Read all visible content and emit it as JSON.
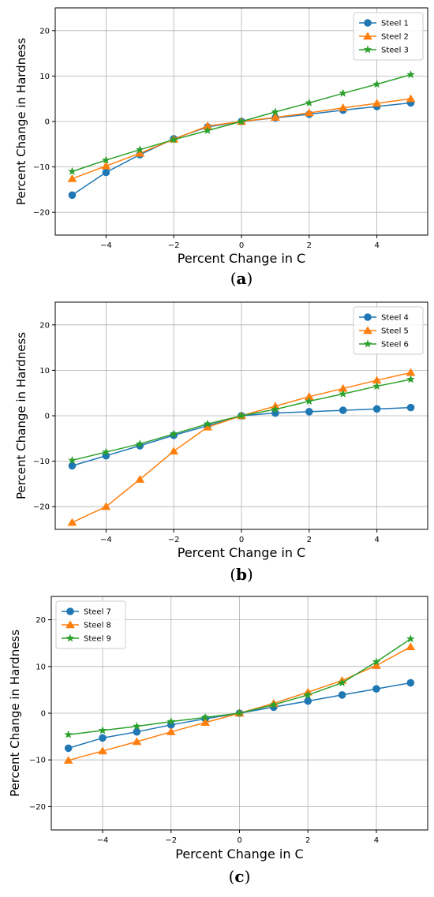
{
  "chart_data": [
    {
      "type": "line",
      "panel_label": "(a)",
      "panel_letter": "a",
      "xlabel": "Percent Change in C",
      "ylabel": "Percent Change in Hardness",
      "xlim": [
        -5.5,
        5.5
      ],
      "ylim": [
        -25,
        25
      ],
      "xticks": [
        -4,
        -2,
        0,
        2,
        4
      ],
      "yticks": [
        -20,
        -10,
        0,
        10,
        20
      ],
      "grid": true,
      "legend": "top-right",
      "x": [
        -5,
        -4,
        -3,
        -2,
        -1,
        0,
        1,
        2,
        3,
        4,
        5
      ],
      "series": [
        {
          "name": "Steel 1",
          "color": "#1f77b4",
          "marker": "circle",
          "values": [
            -16.2,
            -11.2,
            -7.3,
            -3.8,
            -1.2,
            0,
            0.8,
            1.6,
            2.5,
            3.3,
            4.1
          ]
        },
        {
          "name": "Steel 2",
          "color": "#ff7f0e",
          "marker": "triangle",
          "values": [
            -12.6,
            -9.8,
            -7.0,
            -3.9,
            -1.0,
            0,
            0.9,
            1.9,
            3.0,
            4.0,
            5.0
          ]
        },
        {
          "name": "Steel 3",
          "color": "#2ca02c",
          "marker": "star",
          "values": [
            -11.0,
            -8.5,
            -6.2,
            -4.0,
            -2.0,
            0,
            2.1,
            4.1,
            6.2,
            8.2,
            10.3
          ]
        }
      ]
    },
    {
      "type": "line",
      "panel_label": "(b)",
      "panel_letter": "b",
      "xlabel": "Percent Change in C",
      "ylabel": "Percent Change in Hardness",
      "xlim": [
        -5.5,
        5.5
      ],
      "ylim": [
        -25,
        25
      ],
      "xticks": [
        -4,
        -2,
        0,
        2,
        4
      ],
      "yticks": [
        -20,
        -10,
        0,
        10,
        20
      ],
      "grid": true,
      "legend": "top-right",
      "x": [
        -5,
        -4,
        -3,
        -2,
        -1,
        0,
        1,
        2,
        3,
        4,
        5
      ],
      "series": [
        {
          "name": "Steel 4",
          "color": "#1f77b4",
          "marker": "circle",
          "values": [
            -11.0,
            -8.8,
            -6.6,
            -4.3,
            -2.2,
            0,
            0.6,
            0.9,
            1.2,
            1.5,
            1.8
          ]
        },
        {
          "name": "Steel 5",
          "color": "#ff7f0e",
          "marker": "triangle",
          "values": [
            -23.5,
            -20.0,
            -14.0,
            -7.8,
            -2.5,
            0,
            2.1,
            4.2,
            6.0,
            7.8,
            9.5
          ]
        },
        {
          "name": "Steel 6",
          "color": "#2ca02c",
          "marker": "star",
          "values": [
            -9.8,
            -8.0,
            -6.2,
            -4.0,
            -1.8,
            0,
            1.4,
            3.2,
            4.8,
            6.5,
            8.0
          ]
        }
      ]
    },
    {
      "type": "line",
      "panel_label": "(c)",
      "panel_letter": "c",
      "xlabel": "Percent Change in C",
      "ylabel": "Percent Change in Hardness",
      "xlim": [
        -5.5,
        5.5
      ],
      "ylim": [
        -25,
        25
      ],
      "xticks": [
        -4,
        -2,
        0,
        2,
        4
      ],
      "yticks": [
        -20,
        -10,
        0,
        10,
        20
      ],
      "grid": true,
      "legend": "top-left",
      "x": [
        -5,
        -4,
        -3,
        -2,
        -1,
        0,
        1,
        2,
        3,
        4,
        5
      ],
      "series": [
        {
          "name": "Steel 7",
          "color": "#1f77b4",
          "marker": "circle",
          "values": [
            -7.5,
            -5.3,
            -4.0,
            -2.5,
            -1.2,
            0,
            1.3,
            2.6,
            3.9,
            5.2,
            6.5
          ]
        },
        {
          "name": "Steel 8",
          "color": "#ff7f0e",
          "marker": "triangle",
          "values": [
            -10.1,
            -8.1,
            -6.1,
            -4.0,
            -2.0,
            0,
            2.1,
            4.5,
            7.0,
            10.2,
            14.2
          ]
        },
        {
          "name": "Steel 9",
          "color": "#2ca02c",
          "marker": "star",
          "values": [
            -4.6,
            -3.7,
            -2.8,
            -1.8,
            -0.9,
            0,
            1.8,
            3.9,
            6.5,
            11.0,
            15.9
          ]
        }
      ]
    }
  ]
}
